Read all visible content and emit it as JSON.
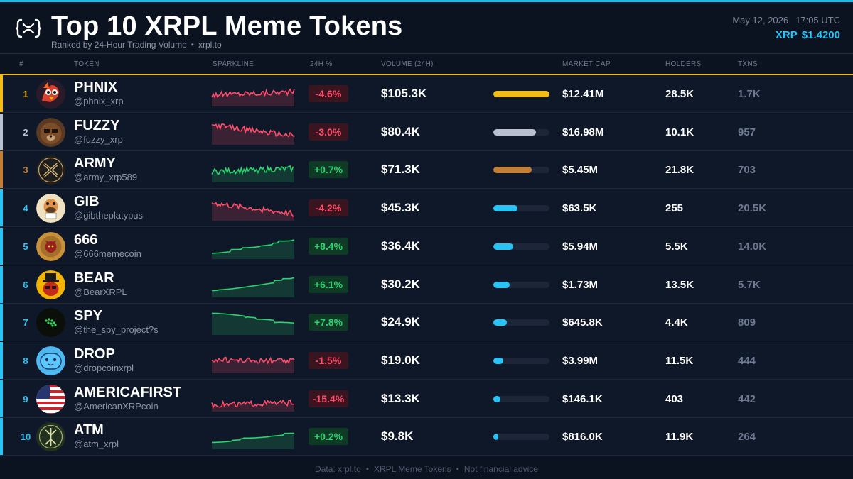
{
  "header": {
    "title": "Top 10 XRPL Meme Tokens",
    "subtitle": "Ranked by 24-Hour Trading Volume",
    "subtitle_sep": "•",
    "source": "xrpl.to",
    "date": "May 12, 2026",
    "time": "17:05 UTC",
    "price_label": "XRP",
    "price_value": "$1.4200"
  },
  "columns": {
    "rank": "#",
    "token": "TOKEN",
    "sparkline": "SPARKLINE",
    "change": "24H %",
    "volume": "VOLUME (24H)",
    "market_cap": "MARKET CAP",
    "holders": "HOLDERS",
    "txns": "TXNS"
  },
  "colors": {
    "accent": "#27c4f5",
    "gold": "#f2bc16",
    "silver": "#b9c1d0",
    "bronze": "#c47f36",
    "positive": "#2bd46e",
    "negative": "#ff4d6a",
    "background": "#0b1220"
  },
  "tokens": [
    {
      "rank": "1",
      "symbol": "PHNIX",
      "handle": "@phnix_xrp",
      "icon": "phoenix-avatar-icon",
      "change": "-4.6%",
      "volume": "$105.3K",
      "volume_share": 1.0,
      "market_cap": "$12.41M",
      "holders": "28.5K",
      "txns": "1.7K"
    },
    {
      "rank": "2",
      "symbol": "FUZZY",
      "handle": "@fuzzy_xrp",
      "icon": "bear-face-avatar-icon",
      "change": "-3.0%",
      "volume": "$80.4K",
      "volume_share": 0.76,
      "market_cap": "$16.98M",
      "holders": "10.1K",
      "txns": "957"
    },
    {
      "rank": "3",
      "symbol": "ARMY",
      "handle": "@army_xrp589",
      "icon": "army-x-logo-icon",
      "change": "+0.7%",
      "volume": "$71.3K",
      "volume_share": 0.68,
      "market_cap": "$5.45M",
      "holders": "21.8K",
      "txns": "703"
    },
    {
      "rank": "4",
      "symbol": "GIB",
      "handle": "@gibtheplatypus",
      "icon": "platypus-avatar-icon",
      "change": "-4.2%",
      "volume": "$45.3K",
      "volume_share": 0.43,
      "market_cap": "$63.5K",
      "holders": "255",
      "txns": "20.5K"
    },
    {
      "rank": "5",
      "symbol": "666",
      "handle": "@666memecoin",
      "icon": "devil-coin-avatar-icon",
      "change": "+8.4%",
      "volume": "$36.4K",
      "volume_share": 0.35,
      "market_cap": "$5.94M",
      "holders": "5.5K",
      "txns": "14.0K"
    },
    {
      "rank": "6",
      "symbol": "BEAR",
      "handle": "@BearXRPL",
      "icon": "top-hat-bear-avatar-icon",
      "change": "+6.1%",
      "volume": "$30.2K",
      "volume_share": 0.29,
      "market_cap": "$1.73M",
      "holders": "13.5K",
      "txns": "5.7K"
    },
    {
      "rank": "7",
      "symbol": "SPY",
      "handle": "@the_spy_project?s",
      "icon": "spy-dots-avatar-icon",
      "change": "+7.8%",
      "volume": "$24.9K",
      "volume_share": 0.24,
      "market_cap": "$645.8K",
      "holders": "4.4K",
      "txns": "809"
    },
    {
      "rank": "8",
      "symbol": "DROP",
      "handle": "@dropcoinxrpl",
      "icon": "blue-drop-face-avatar-icon",
      "change": "-1.5%",
      "volume": "$19.0K",
      "volume_share": 0.18,
      "market_cap": "$3.99M",
      "holders": "11.5K",
      "txns": "444"
    },
    {
      "rank": "9",
      "symbol": "AMERICAFIRST",
      "handle": "@AmericanXRPcoin",
      "icon": "us-flag-avatar-icon",
      "change": "-15.4%",
      "volume": "$13.3K",
      "volume_share": 0.13,
      "market_cap": "$146.1K",
      "holders": "403",
      "txns": "442"
    },
    {
      "rank": "10",
      "symbol": "ATM",
      "handle": "@atm_xrpl",
      "icon": "atm-rune-avatar-icon",
      "change": "+0.2%",
      "volume": "$9.8K",
      "volume_share": 0.09,
      "market_cap": "$816.0K",
      "holders": "11.9K",
      "txns": "264"
    }
  ],
  "footer": {
    "items": [
      "Data: xrpl.to",
      "XRPL Meme Tokens",
      "Not financial advice"
    ],
    "sep": "•"
  }
}
